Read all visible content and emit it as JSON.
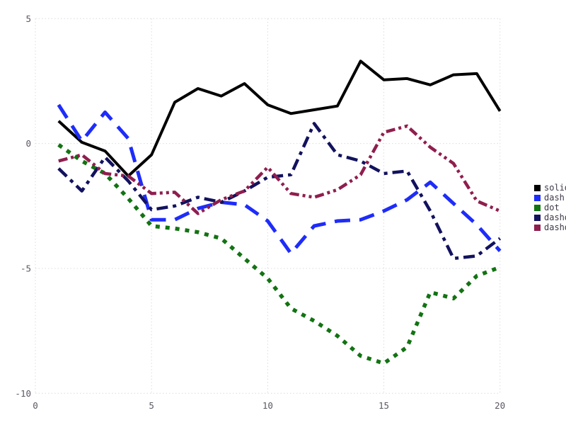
{
  "chart_data": {
    "type": "line",
    "title": "",
    "xlabel": "",
    "ylabel": "",
    "xlim": [
      0,
      20
    ],
    "ylim": [
      -10,
      5
    ],
    "xticks": [
      "0",
      "5",
      "10",
      "15",
      "20"
    ],
    "yticks": [
      "-10",
      "-5",
      "0",
      "5"
    ],
    "grid": "dotted",
    "legend_position": "right",
    "x": [
      1,
      2,
      3,
      4,
      5,
      6,
      7,
      8,
      9,
      10,
      11,
      12,
      13,
      14,
      15,
      16,
      17,
      18,
      19,
      20
    ],
    "series": [
      {
        "name": "solid",
        "color": "#000000",
        "linestyle": "solid",
        "values": [
          0.9,
          0.05,
          -0.3,
          -1.3,
          -0.45,
          1.65,
          2.2,
          1.9,
          2.4,
          1.55,
          1.2,
          1.35,
          1.5,
          3.3,
          2.55,
          2.6,
          2.35,
          2.75,
          2.8,
          1.3
        ]
      },
      {
        "name": "dash",
        "color": "#1e2cfa",
        "linestyle": "dash",
        "values": [
          1.55,
          0.1,
          1.25,
          0.2,
          -3.05,
          -3.05,
          -2.6,
          -2.35,
          -2.45,
          -3.1,
          -4.4,
          -3.3,
          -3.1,
          -3.05,
          -2.7,
          -2.25,
          -1.55,
          -2.4,
          -3.25,
          -4.3
        ]
      },
      {
        "name": "dot",
        "color": "#127312",
        "linestyle": "dot",
        "values": [
          -0.05,
          -0.7,
          -1.2,
          -2.2,
          -3.3,
          -3.4,
          -3.55,
          -3.8,
          -4.6,
          -5.4,
          -6.6,
          -7.1,
          -7.7,
          -8.5,
          -8.8,
          -8.15,
          -5.95,
          -6.2,
          -5.3,
          -4.95
        ]
      },
      {
        "name": "dashdot",
        "color": "#12125e",
        "linestyle": "dashdot",
        "values": [
          -1.0,
          -1.9,
          -0.55,
          -1.5,
          -2.65,
          -2.5,
          -2.15,
          -2.35,
          -1.9,
          -1.35,
          -1.25,
          0.8,
          -0.45,
          -0.7,
          -1.2,
          -1.1,
          -2.7,
          -4.6,
          -4.5,
          -3.8
        ]
      },
      {
        "name": "dashdotdot",
        "color": "#8f1e4e",
        "linestyle": "dashdotdot",
        "values": [
          -0.7,
          -0.45,
          -1.2,
          -1.3,
          -2.0,
          -1.95,
          -2.8,
          -2.25,
          -1.9,
          -0.95,
          -2.0,
          -2.15,
          -1.85,
          -1.25,
          0.45,
          0.7,
          -0.15,
          -0.8,
          -2.3,
          -2.7
        ]
      }
    ],
    "colors": {
      "grid": "#dcd9e0",
      "tick_label": "#5c5662",
      "legend_text": "#3d3846",
      "background": "#ffffff"
    }
  }
}
